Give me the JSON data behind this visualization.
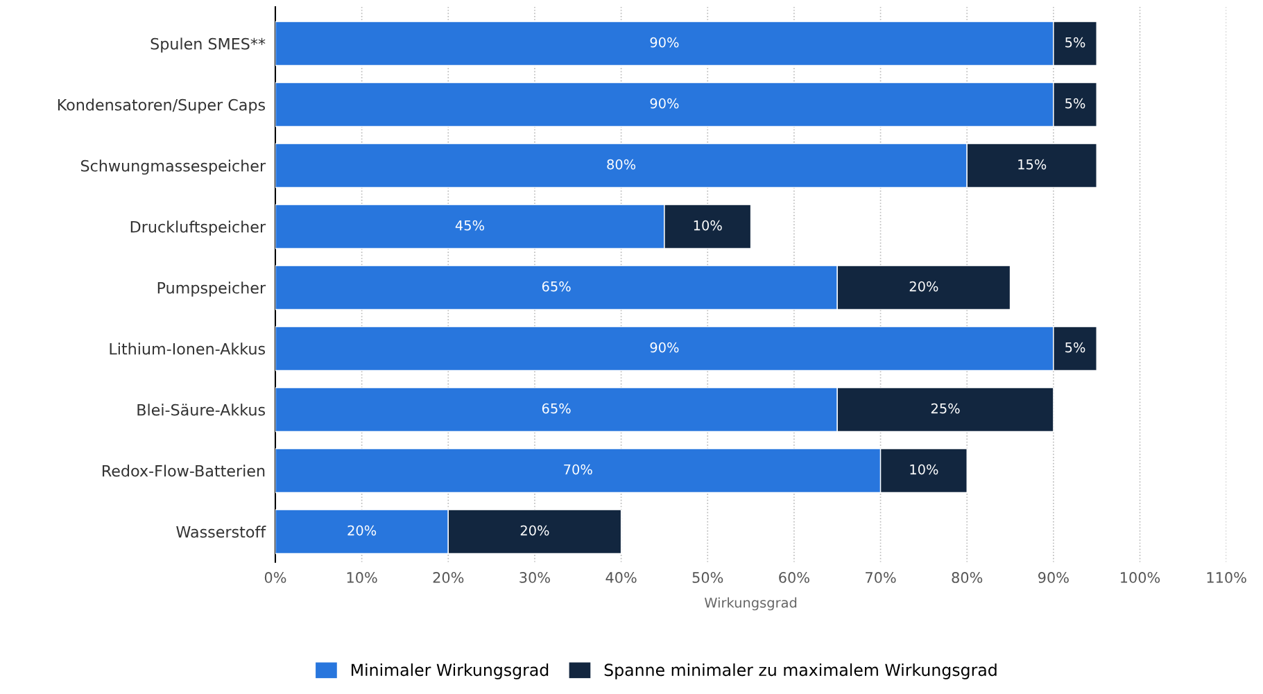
{
  "chart_data": {
    "type": "bar",
    "orientation": "horizontal",
    "stacked": true,
    "xlabel": "Wirkungsgrad",
    "categories": [
      "Spulen SMES**",
      "Kondensatoren/Super Caps",
      "Schwungmassespeicher",
      "Druckluftspeicher",
      "Pumpspeicher",
      "Lithium-Ionen-Akkus",
      "Blei-Säure-Akkus",
      "Redox-Flow-Batterien",
      "Wasserstoff"
    ],
    "series": [
      {
        "name": "Minimaler Wirkungsgrad",
        "color": "#2876dd",
        "values": [
          90,
          90,
          80,
          45,
          65,
          90,
          65,
          70,
          20
        ],
        "value_labels": [
          "90%",
          "90%",
          "80%",
          "45%",
          "65%",
          "90%",
          "65%",
          "70%",
          "20%"
        ]
      },
      {
        "name": "Spanne minimaler zu maximalem Wirkungsgrad",
        "color": "#12263f",
        "values": [
          5,
          5,
          15,
          10,
          20,
          5,
          25,
          10,
          20
        ],
        "value_labels": [
          "5%",
          "5%",
          "15%",
          "10%",
          "20%",
          "5%",
          "25%",
          "10%",
          "20%"
        ]
      }
    ],
    "xlim": [
      0,
      110
    ],
    "xticks": [
      {
        "value": 0,
        "label": "0%"
      },
      {
        "value": 10,
        "label": "10%"
      },
      {
        "value": 20,
        "label": "20%"
      },
      {
        "value": 30,
        "label": "30%"
      },
      {
        "value": 40,
        "label": "40%"
      },
      {
        "value": 50,
        "label": "50%"
      },
      {
        "value": 60,
        "label": "60%"
      },
      {
        "value": 70,
        "label": "70%"
      },
      {
        "value": 80,
        "label": "80%"
      },
      {
        "value": 90,
        "label": "90%"
      },
      {
        "value": 100,
        "label": "100%"
      },
      {
        "value": 110,
        "label": "110%"
      }
    ],
    "grid": "x",
    "legend": "bottom"
  }
}
